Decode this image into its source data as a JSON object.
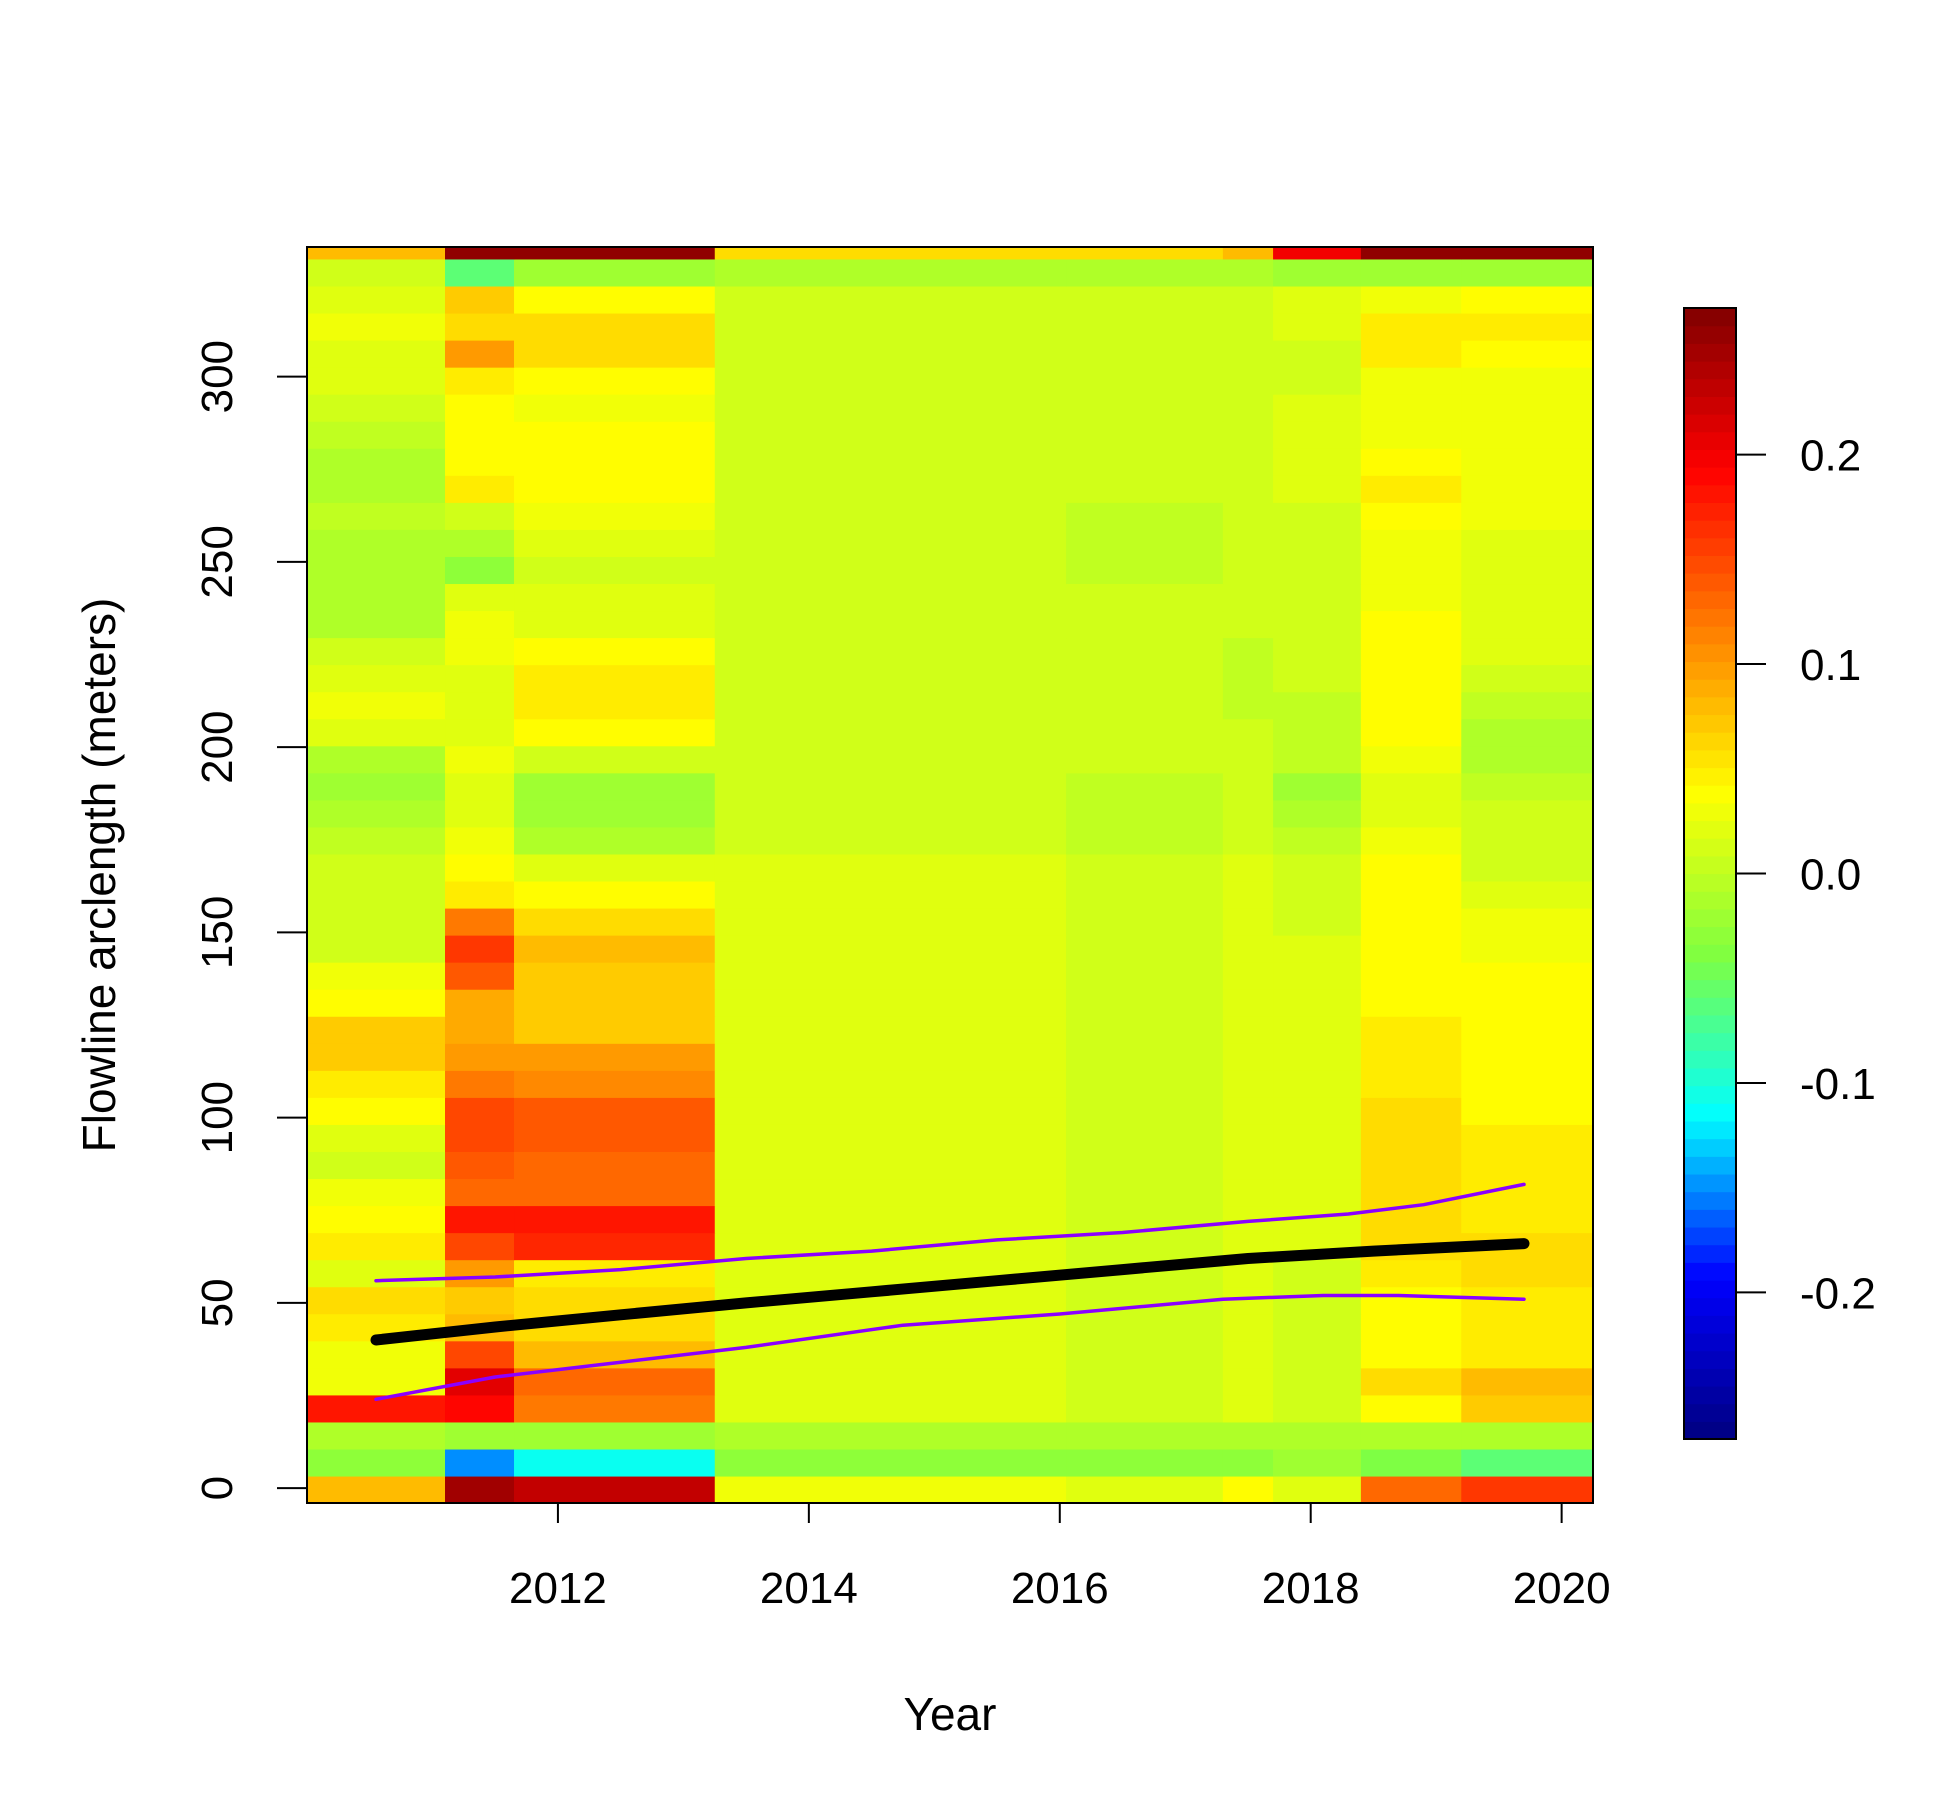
{
  "chart_data": {
    "type": "heatmap",
    "title": "",
    "xlabel": "Year",
    "ylabel": "Flowline arclength (meters)",
    "xlim": [
      2010.0,
      2020.25
    ],
    "ylim": [
      -4,
      335
    ],
    "x_ticks": [
      "2012",
      "2014",
      "2016",
      "2018",
      "2020"
    ],
    "y_ticks": [
      "0",
      "50",
      "100",
      "150",
      "200",
      "250",
      "300"
    ],
    "colorbar": {
      "range": [
        -0.27,
        0.27
      ],
      "ticks": [
        "-0.2",
        "-0.1",
        "0.0",
        "0.1",
        "0.2"
      ],
      "colormap": [
        "#000080",
        "#0000ff",
        "#00ffff",
        "#80ff40",
        "#ffff00",
        "#ff8000",
        "#ff0000",
        "#800000"
      ]
    },
    "columns": [
      {
        "x0": 2010.0,
        "x1": 2011.1
      },
      {
        "x0": 2011.1,
        "x1": 2011.65
      },
      {
        "x0": 2011.65,
        "x1": 2013.25
      },
      {
        "x0": 2013.25,
        "x1": 2016.05
      },
      {
        "x0": 2016.05,
        "x1": 2017.3
      },
      {
        "x0": 2017.3,
        "x1": 2017.7
      },
      {
        "x0": 2017.7,
        "x1": 2018.4
      },
      {
        "x0": 2018.4,
        "x1": 2019.2
      },
      {
        "x0": 2019.2,
        "x1": 2020.25
      }
    ],
    "row_height": 7.3,
    "row_start": -4,
    "grid": [
      [
        0.08,
        0.25,
        0.23,
        0.03,
        0.02,
        0.04,
        0.02,
        0.13,
        0.16
      ],
      [
        -0.03,
        -0.15,
        -0.11,
        -0.03,
        -0.03,
        -0.03,
        -0.02,
        -0.04,
        -0.06
      ],
      [
        -0.01,
        -0.02,
        -0.02,
        -0.01,
        -0.01,
        -0.01,
        -0.01,
        -0.01,
        -0.01
      ],
      [
        0.18,
        0.19,
        0.12,
        0.02,
        0.01,
        0.02,
        0.01,
        0.04,
        0.07
      ],
      [
        0.03,
        0.21,
        0.13,
        0.02,
        0.01,
        0.02,
        0.01,
        0.06,
        0.08
      ],
      [
        0.03,
        0.15,
        0.08,
        0.02,
        0.01,
        0.02,
        0.01,
        0.04,
        0.05
      ],
      [
        0.05,
        0.08,
        0.06,
        0.02,
        0.01,
        0.02,
        0.01,
        0.04,
        0.05
      ],
      [
        0.06,
        0.07,
        0.06,
        0.02,
        0.01,
        0.02,
        0.01,
        0.04,
        0.05
      ],
      [
        0.02,
        0.1,
        0.05,
        0.02,
        0.01,
        0.02,
        0.01,
        0.05,
        0.06
      ],
      [
        0.05,
        0.15,
        0.17,
        0.02,
        0.01,
        0.02,
        0.02,
        0.06,
        0.06
      ],
      [
        0.04,
        0.18,
        0.18,
        0.02,
        0.01,
        0.02,
        0.02,
        0.06,
        0.05
      ],
      [
        0.03,
        0.13,
        0.13,
        0.02,
        0.01,
        0.02,
        0.02,
        0.06,
        0.05
      ],
      [
        0.01,
        0.14,
        0.13,
        0.02,
        0.01,
        0.02,
        0.02,
        0.06,
        0.05
      ],
      [
        0.02,
        0.15,
        0.14,
        0.02,
        0.01,
        0.02,
        0.02,
        0.06,
        0.05
      ],
      [
        0.04,
        0.15,
        0.14,
        0.02,
        0.01,
        0.02,
        0.02,
        0.06,
        0.04
      ],
      [
        0.05,
        0.12,
        0.11,
        0.02,
        0.01,
        0.02,
        0.02,
        0.05,
        0.04
      ],
      [
        0.07,
        0.1,
        0.1,
        0.02,
        0.01,
        0.02,
        0.02,
        0.05,
        0.04
      ],
      [
        0.07,
        0.09,
        0.07,
        0.02,
        0.01,
        0.02,
        0.02,
        0.05,
        0.04
      ],
      [
        0.04,
        0.09,
        0.07,
        0.02,
        0.01,
        0.02,
        0.02,
        0.04,
        0.04
      ],
      [
        0.03,
        0.14,
        0.07,
        0.02,
        0.01,
        0.02,
        0.02,
        0.04,
        0.04
      ],
      [
        0.01,
        0.16,
        0.08,
        0.02,
        0.01,
        0.02,
        0.02,
        0.04,
        0.03
      ],
      [
        0.01,
        0.12,
        0.06,
        0.02,
        0.01,
        0.02,
        0.01,
        0.04,
        0.03
      ],
      [
        0.01,
        0.05,
        0.04,
        0.02,
        0.01,
        0.02,
        0.01,
        0.04,
        0.02
      ],
      [
        0.01,
        0.04,
        0.02,
        0.02,
        0.01,
        0.02,
        0.01,
        0.04,
        0.01
      ],
      [
        0.0,
        0.03,
        -0.01,
        0.01,
        0.0,
        0.01,
        0.0,
        0.03,
        0.01
      ],
      [
        -0.01,
        0.02,
        -0.02,
        0.01,
        0.0,
        0.01,
        -0.01,
        0.02,
        0.01
      ],
      [
        -0.02,
        0.02,
        -0.02,
        0.01,
        0.0,
        0.01,
        -0.02,
        0.02,
        0.0
      ],
      [
        -0.01,
        0.03,
        0.01,
        0.01,
        0.01,
        0.01,
        0.0,
        0.03,
        -0.01
      ],
      [
        0.02,
        0.02,
        0.04,
        0.01,
        0.01,
        0.01,
        0.0,
        0.04,
        -0.01
      ],
      [
        0.03,
        0.02,
        0.05,
        0.01,
        0.01,
        0.0,
        0.0,
        0.04,
        0.0
      ],
      [
        0.02,
        0.02,
        0.05,
        0.01,
        0.01,
        0.0,
        0.01,
        0.04,
        0.01
      ],
      [
        0.01,
        0.03,
        0.04,
        0.01,
        0.01,
        0.0,
        0.01,
        0.04,
        0.02
      ],
      [
        -0.01,
        0.03,
        0.02,
        0.01,
        0.01,
        0.01,
        0.01,
        0.04,
        0.02
      ],
      [
        -0.01,
        0.02,
        0.02,
        0.01,
        0.01,
        0.01,
        0.01,
        0.03,
        0.02
      ],
      [
        -0.01,
        -0.03,
        0.01,
        0.01,
        0.0,
        0.01,
        0.01,
        0.03,
        0.02
      ],
      [
        -0.01,
        -0.01,
        0.02,
        0.01,
        0.0,
        0.01,
        0.01,
        0.03,
        0.02
      ],
      [
        0.0,
        0.01,
        0.03,
        0.01,
        0.0,
        0.01,
        0.01,
        0.04,
        0.03
      ],
      [
        -0.01,
        0.05,
        0.04,
        0.01,
        0.01,
        0.01,
        0.02,
        0.05,
        0.03
      ],
      [
        -0.01,
        0.04,
        0.04,
        0.01,
        0.01,
        0.01,
        0.02,
        0.04,
        0.03
      ],
      [
        0.0,
        0.04,
        0.04,
        0.01,
        0.01,
        0.01,
        0.02,
        0.03,
        0.03
      ],
      [
        0.01,
        0.04,
        0.03,
        0.01,
        0.01,
        0.01,
        0.02,
        0.03,
        0.03
      ],
      [
        0.02,
        0.05,
        0.04,
        0.01,
        0.01,
        0.01,
        0.01,
        0.03,
        0.03
      ],
      [
        0.02,
        0.1,
        0.06,
        0.01,
        0.01,
        0.01,
        0.01,
        0.05,
        0.04
      ],
      [
        0.03,
        0.06,
        0.06,
        0.01,
        0.01,
        0.01,
        0.02,
        0.05,
        0.05
      ],
      [
        0.02,
        0.07,
        0.04,
        0.01,
        0.01,
        0.01,
        0.02,
        0.03,
        0.04
      ],
      [
        0.01,
        -0.06,
        -0.02,
        -0.01,
        -0.01,
        -0.01,
        -0.02,
        -0.02,
        -0.02
      ],
      [
        0.08,
        0.26,
        0.26,
        0.06,
        0.06,
        0.08,
        0.2,
        0.26,
        0.26
      ]
    ],
    "series": [
      {
        "color": "#000000",
        "x": [
          2010.55,
          2011.5,
          2012.5,
          2013.5,
          2014.5,
          2015.5,
          2016.5,
          2017.5,
          2018.5,
          2019.7
        ],
        "values": [
          40,
          43.5,
          46.8,
          50,
          53,
          56,
          59,
          62,
          64,
          66
        ]
      },
      {
        "color": "#8b00ff",
        "x": [
          2010.55,
          2011.5,
          2012.5,
          2013.5,
          2014.5,
          2015.5,
          2016.5,
          2017.5,
          2018.3,
          2018.9,
          2019.7
        ],
        "values": [
          56,
          57,
          59,
          62,
          64,
          67,
          69,
          72,
          74,
          76.5,
          82
        ]
      },
      {
        "color": "#8b00ff",
        "x": [
          2010.55,
          2011.5,
          2012.5,
          2013.5,
          2014.75,
          2016,
          2017.3,
          2018.1,
          2018.7,
          2019.7
        ],
        "values": [
          24,
          30,
          34,
          38,
          44,
          47,
          51,
          52,
          52,
          51
        ]
      }
    ]
  }
}
